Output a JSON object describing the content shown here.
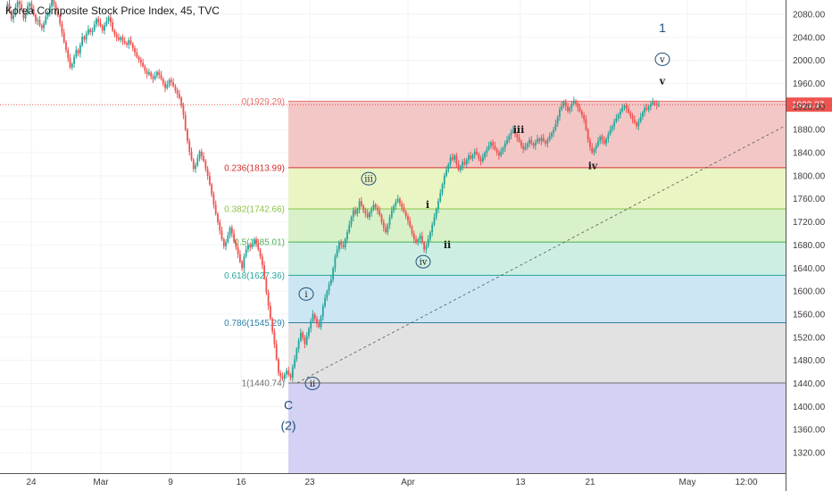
{
  "chart_data": {
    "type": "candlestick",
    "title": "Korea Composite Stock Price Index, 45, TVC",
    "ylim": [
      1300,
      2100
    ],
    "y_ticks": [
      "1320.00",
      "1360.00",
      "1400.00",
      "1440.00",
      "1480.00",
      "1520.00",
      "1560.00",
      "1600.00",
      "1640.00",
      "1680.00",
      "1720.00",
      "1760.00",
      "1800.00",
      "1840.00",
      "1880.00",
      "1920.00",
      "1960.00",
      "2000.00",
      "2040.00",
      "2080.00"
    ],
    "x_tick_labels": [
      "24",
      "Mar",
      "9",
      "16",
      "23",
      "Apr",
      "13",
      "21",
      "May",
      "12:00"
    ],
    "last_price": "1923.37",
    "fib_levels": [
      {
        "ratio": 0,
        "label": "0(1929.29)",
        "price": 1929.29,
        "color": "#e57373",
        "fill": "#f4c7c7"
      },
      {
        "ratio": 0.236,
        "label": "0.236(1813.99)",
        "price": 1813.99,
        "color": "#d32f2f",
        "fill": "#eaf5c4"
      },
      {
        "ratio": 0.382,
        "label": "0.382(1742.66)",
        "price": 1742.66,
        "color": "#8bc34a",
        "fill": "#d8f1c9"
      },
      {
        "ratio": 0.5,
        "label": "0.5(1685.01)",
        "price": 1685.01,
        "color": "#4caf50",
        "fill": "#cdefe3"
      },
      {
        "ratio": 0.618,
        "label": "0.618(1627.36)",
        "price": 1627.36,
        "color": "#26a69a",
        "fill": "#cde6f4"
      },
      {
        "ratio": 0.786,
        "label": "0.786(1545.29)",
        "price": 1545.29,
        "color": "#2f7fa8",
        "fill": "#e2e2e2"
      },
      {
        "ratio": 1,
        "label": "1(1440.74)",
        "price": 1440.74,
        "color": "#707070",
        "fill": "#d3d2f4"
      }
    ],
    "wave_labels": {
      "circled": [
        {
          "text": "i",
          "price": 1595
        },
        {
          "text": "ii",
          "price": 1440
        },
        {
          "text": "iii",
          "price": 1795
        },
        {
          "text": "iv",
          "price": 1651
        },
        {
          "text": "v",
          "price": 2002
        }
      ],
      "plain": [
        {
          "text": "i",
          "price": 1750
        },
        {
          "text": "ii",
          "price": 1681
        },
        {
          "text": "iii",
          "price": 1880
        },
        {
          "text": "iv",
          "price": 1818
        },
        {
          "text": "v",
          "price": 1965
        }
      ],
      "big": [
        {
          "text": "C",
          "price": 1403
        },
        {
          "text": "(2)",
          "price": 1367
        },
        {
          "text": "1",
          "price": 2057
        }
      ]
    },
    "series": [
      {
        "name": "Korea Composite Stock Price Index",
        "values": [
          2090,
          2098,
          2085,
          2072,
          2078,
          2092,
          2102,
          2097,
          2088,
          2073,
          2081,
          2094,
          2099,
          2089,
          2079,
          2068,
          2070,
          2061,
          2056,
          2064,
          2076,
          2083,
          2094,
          2105,
          2097,
          2085,
          2078,
          2064,
          2048,
          2032,
          2018,
          2004,
          1988,
          1994,
          2006,
          2018,
          2012,
          2026,
          2041,
          2036,
          2046,
          2054,
          2049,
          2052,
          2062,
          2072,
          2066,
          2060,
          2052,
          2061,
          2068,
          2075,
          2066,
          2052,
          2045,
          2040,
          2036,
          2040,
          2034,
          2030,
          2027,
          2035,
          2029,
          2021,
          2014,
          2006,
          2001,
          1996,
          1990,
          1982,
          1976,
          1979,
          1972,
          1968,
          1974,
          1980,
          1975,
          1968,
          1960,
          1952,
          1958,
          1966,
          1962,
          1956,
          1948,
          1942,
          1935,
          1922,
          1905,
          1880,
          1860,
          1842,
          1828,
          1812,
          1818,
          1830,
          1842,
          1834,
          1826,
          1812,
          1800,
          1785,
          1768,
          1750,
          1734,
          1720,
          1705,
          1690,
          1678,
          1685,
          1696,
          1710,
          1700,
          1686,
          1676,
          1664,
          1651,
          1640,
          1660,
          1672,
          1680,
          1676,
          1682,
          1690,
          1683,
          1672,
          1660,
          1645,
          1622,
          1598,
          1574,
          1552,
          1530,
          1508,
          1482,
          1458,
          1452,
          1448,
          1456,
          1462,
          1455,
          1450,
          1468,
          1482,
          1500,
          1514,
          1528,
          1519,
          1508,
          1522,
          1535,
          1548,
          1560,
          1552,
          1544,
          1538,
          1556,
          1574,
          1588,
          1600,
          1612,
          1620,
          1640,
          1660,
          1672,
          1685,
          1680,
          1676,
          1690,
          1702,
          1715,
          1728,
          1740,
          1734,
          1742,
          1756,
          1748,
          1740,
          1735,
          1728,
          1736,
          1742,
          1750,
          1745,
          1740,
          1732,
          1720,
          1710,
          1702,
          1715,
          1728,
          1740,
          1748,
          1755,
          1760,
          1752,
          1745,
          1738,
          1730,
          1722,
          1712,
          1700,
          1690,
          1684,
          1690,
          1696,
          1684,
          1672,
          1678,
          1690,
          1702,
          1715,
          1728,
          1742,
          1756,
          1770,
          1785,
          1800,
          1810,
          1820,
          1832,
          1828,
          1835,
          1820,
          1810,
          1816,
          1824,
          1820,
          1828,
          1835,
          1830,
          1836,
          1842,
          1838,
          1830,
          1825,
          1832,
          1840,
          1846,
          1852,
          1858,
          1852,
          1846,
          1840,
          1835,
          1842,
          1848,
          1856,
          1862,
          1870,
          1876,
          1880,
          1872,
          1866,
          1860,
          1852,
          1846,
          1850,
          1856,
          1862,
          1856,
          1852,
          1858,
          1864,
          1860,
          1866,
          1860,
          1856,
          1862,
          1868,
          1874,
          1880,
          1890,
          1902,
          1915,
          1922,
          1928,
          1920,
          1912,
          1918,
          1925,
          1930,
          1925,
          1918,
          1912,
          1905,
          1898,
          1880,
          1862,
          1850,
          1840,
          1846,
          1852,
          1860,
          1868,
          1862,
          1856,
          1864,
          1872,
          1880,
          1886,
          1894,
          1900,
          1906,
          1912,
          1918,
          1922,
          1916,
          1910,
          1904,
          1898,
          1892,
          1886,
          1894,
          1902,
          1910,
          1918,
          1915,
          1920,
          1924,
          1928,
          1926,
          1922,
          1923
        ]
      }
    ]
  }
}
